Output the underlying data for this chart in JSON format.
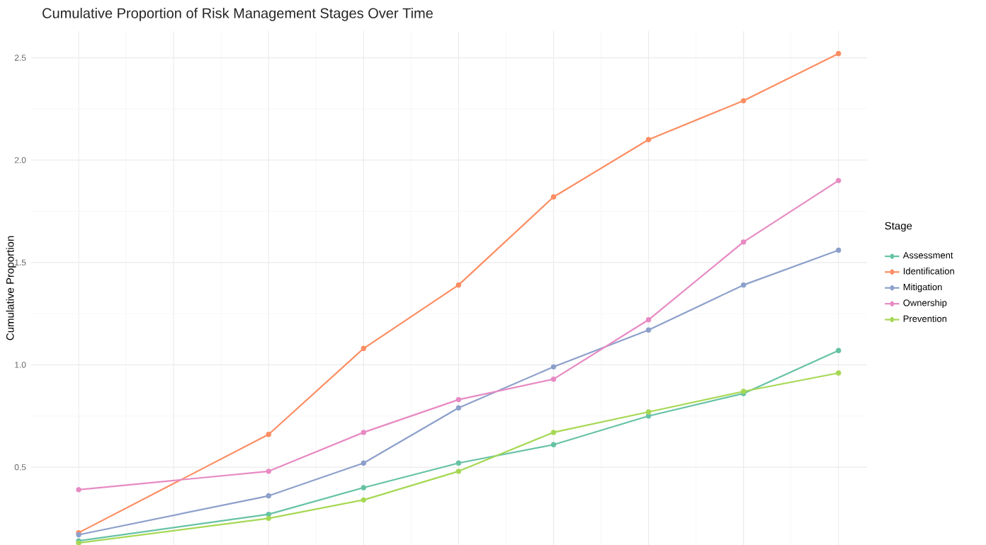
{
  "chart_data": {
    "type": "line",
    "title": "Cumulative Proportion of Risk Management Stages Over Time",
    "ylabel": "Cumulative Proportion",
    "legend_title": "Stage",
    "categories": [
      null,
      null,
      null,
      null,
      null,
      null,
      null,
      null,
      null
    ],
    "series": [
      {
        "name": "Assessment",
        "color": "#66c2a5",
        "values": [
          0.14,
          null,
          0.27,
          0.4,
          0.52,
          0.61,
          0.75,
          0.86,
          1.07
        ]
      },
      {
        "name": "Identification",
        "color": "#fc8d62",
        "values": [
          0.18,
          null,
          0.66,
          1.08,
          1.39,
          1.82,
          2.1,
          2.29,
          2.52
        ]
      },
      {
        "name": "Mitigation",
        "color": "#8da0cb",
        "values": [
          0.17,
          null,
          0.36,
          0.52,
          0.79,
          0.99,
          1.17,
          1.39,
          1.56
        ]
      },
      {
        "name": "Ownership",
        "color": "#e78ac3",
        "values": [
          0.39,
          null,
          0.48,
          0.67,
          0.83,
          0.93,
          1.22,
          1.6,
          1.9
        ]
      },
      {
        "name": "Prevention",
        "color": "#a6d854",
        "values": [
          0.13,
          null,
          0.25,
          0.34,
          0.48,
          0.67,
          0.77,
          0.87,
          0.96
        ]
      }
    ],
    "ylim": [
      0.12,
      2.63
    ],
    "yticks": [
      0.5,
      {
        "value": 1.0,
        "label": "1.0"
      },
      1.5,
      {
        "value": 2.0,
        "label": "2.0"
      },
      2.5
    ],
    "tick_labels": "y",
    "grid": true,
    "legend": "right",
    "marker": "circle",
    "line_style": "solid"
  }
}
